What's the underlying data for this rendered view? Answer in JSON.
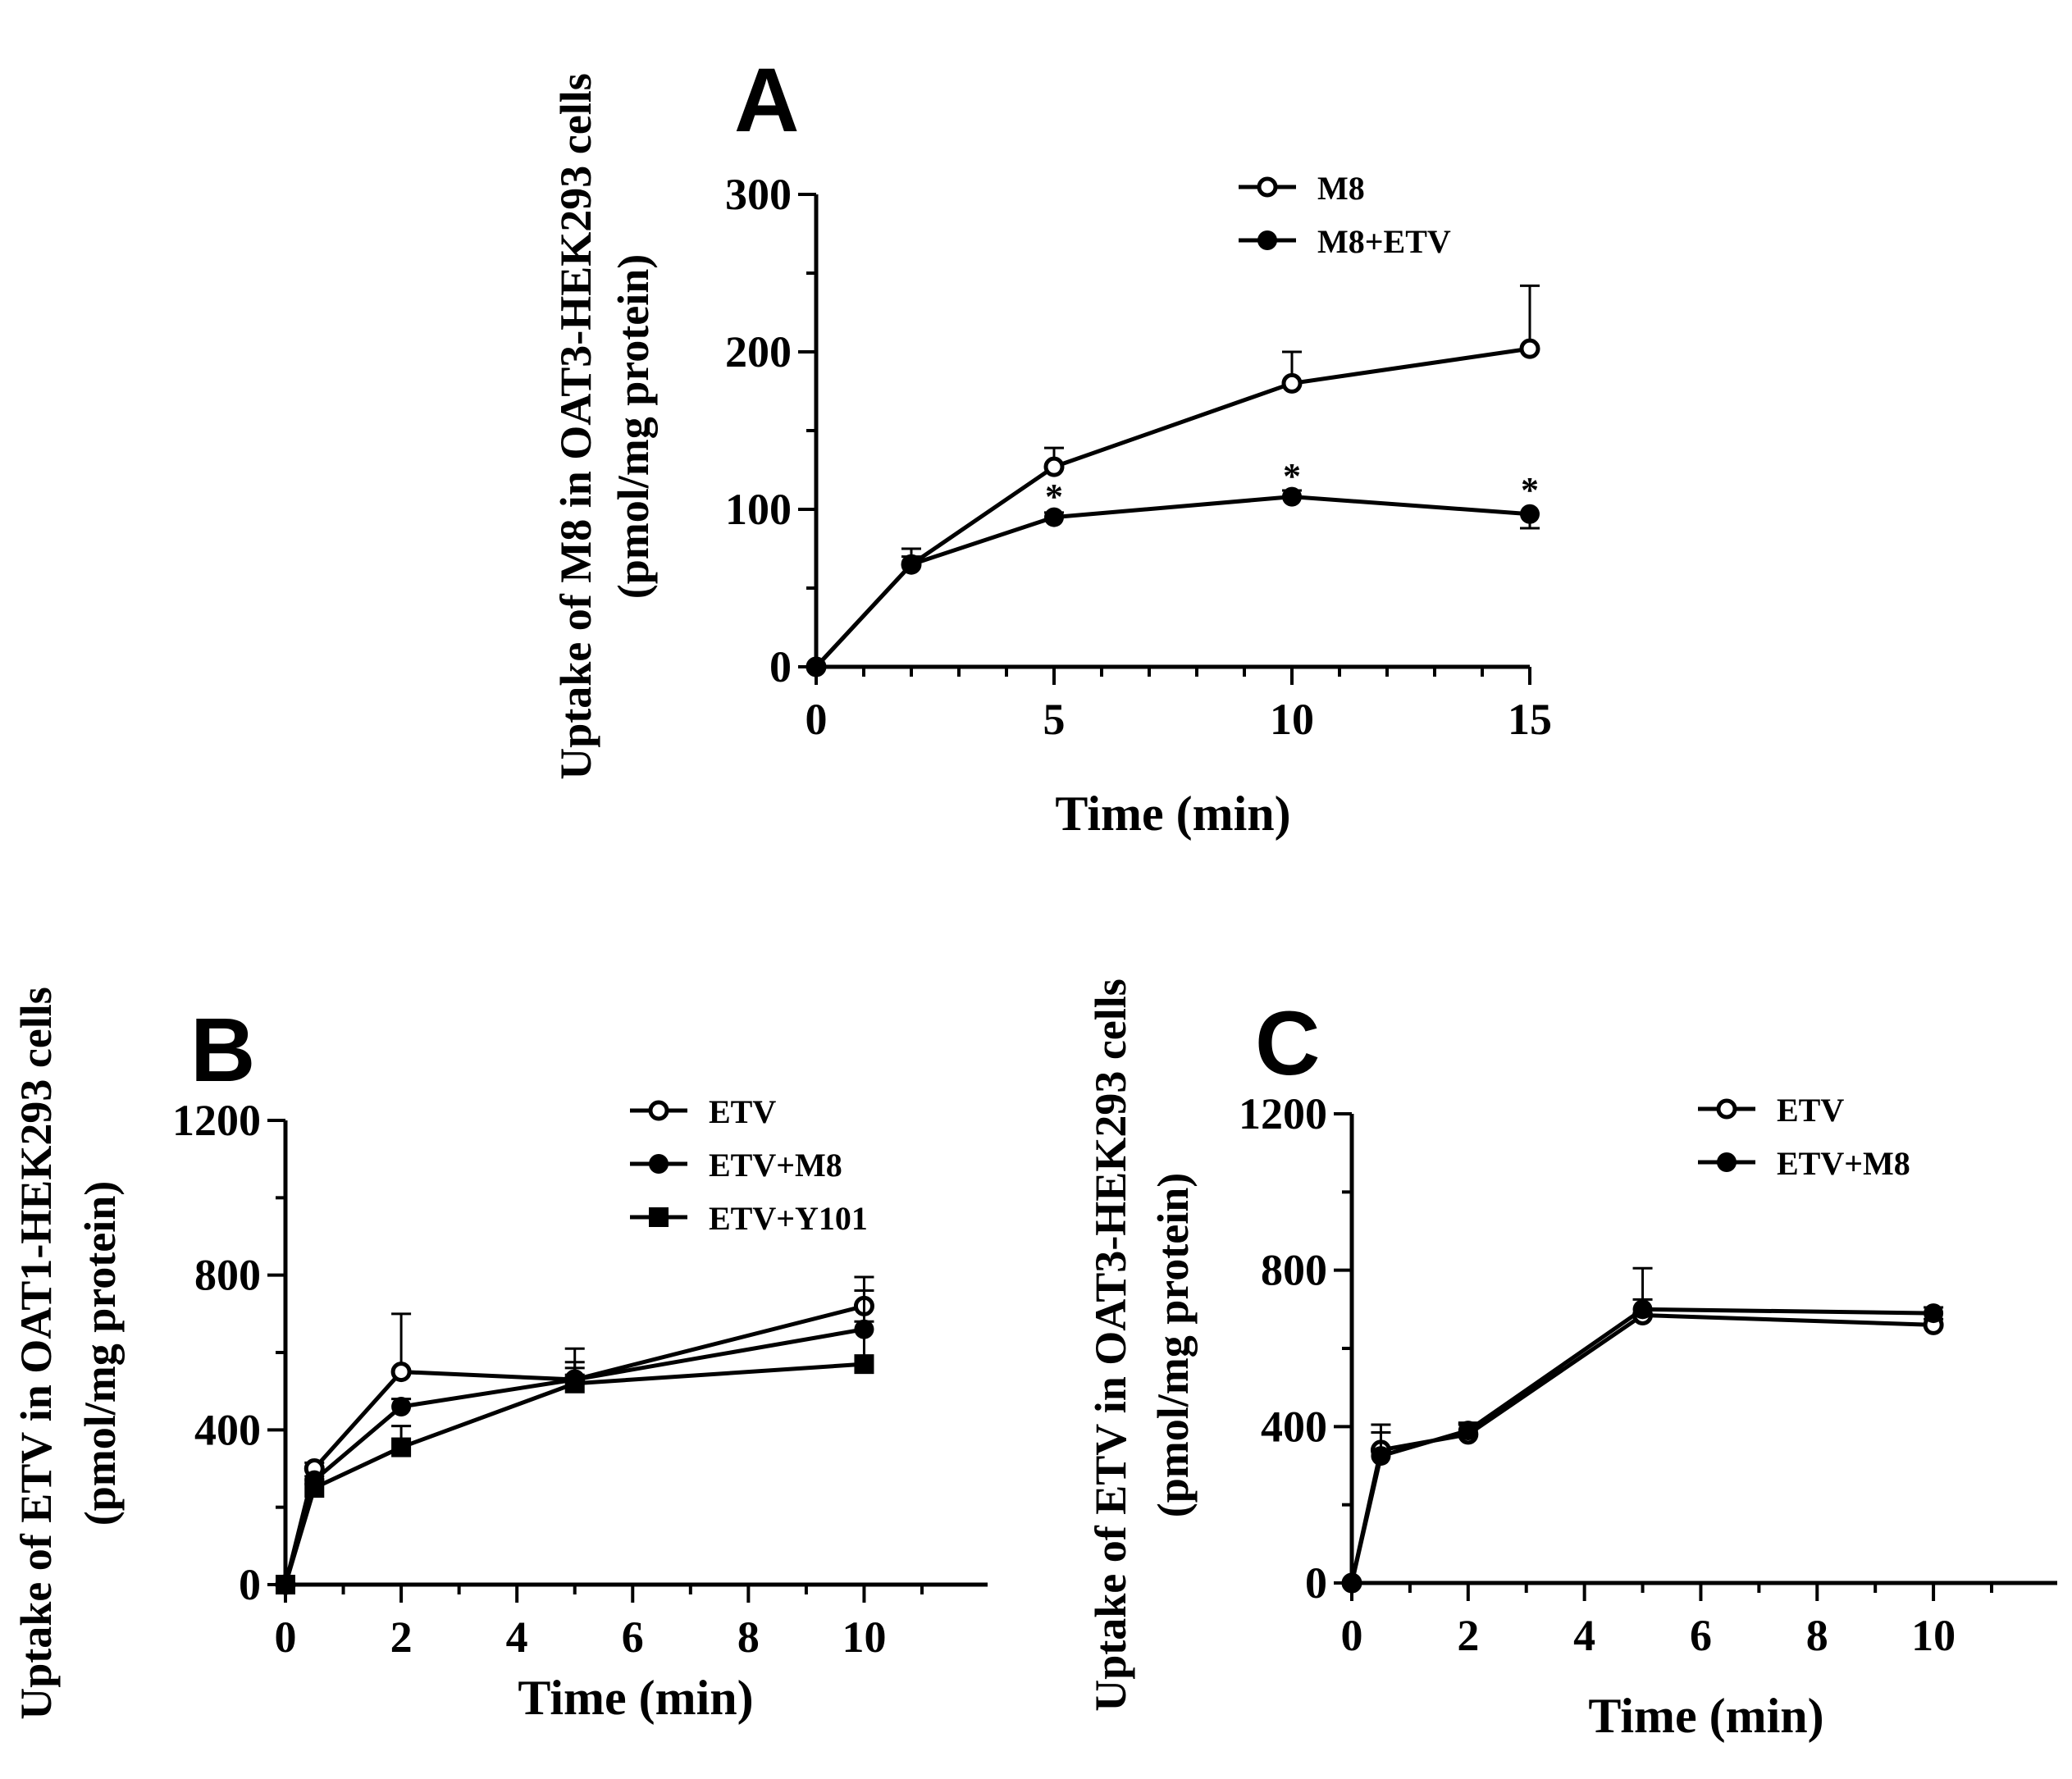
{
  "chart_data": [
    {
      "type": "line",
      "panel_label": "A",
      "xlabel": "Time (min)",
      "ylabel": "Uptake of M8 in OAT3-HEK293 cells",
      "ylabel2": "(pmol/mg protein)",
      "xlim": [
        0,
        15
      ],
      "ylim": [
        0,
        300
      ],
      "xticks": [
        0,
        5,
        10,
        15
      ],
      "yticks": [
        0,
        100,
        200,
        300
      ],
      "grid": false,
      "legend_position": "top-right",
      "series": [
        {
          "name": "M8",
          "marker": "open-circle",
          "x": [
            0,
            2,
            5,
            10,
            15
          ],
          "y": [
            0,
            65,
            127,
            180,
            202
          ],
          "err": [
            0,
            10,
            12,
            20,
            40
          ]
        },
        {
          "name": "M8+ETV",
          "marker": "filled-circle",
          "x": [
            0,
            2,
            5,
            10,
            15
          ],
          "y": [
            0,
            65,
            95,
            108,
            97
          ],
          "err": [
            0,
            5,
            3,
            4,
            9
          ]
        }
      ],
      "annotations": [
        {
          "text": "*",
          "x": 5,
          "y": 110
        },
        {
          "text": "*",
          "x": 10,
          "y": 123
        },
        {
          "text": "*",
          "x": 15,
          "y": 114
        }
      ]
    },
    {
      "type": "line",
      "panel_label": "B",
      "xlabel": "Time (min)",
      "ylabel": "Uptake of ETV in OAT1-HEK293 cells",
      "ylabel2": "(pmol/mg protein)",
      "xlim": [
        0,
        11
      ],
      "ylim": [
        0,
        1200
      ],
      "xticks": [
        0,
        2,
        4,
        6,
        8,
        10
      ],
      "yticks": [
        0,
        400,
        800,
        1200
      ],
      "grid": false,
      "legend_position": "top-right",
      "series": [
        {
          "name": "ETV",
          "marker": "open-circle",
          "x": [
            0,
            0.5,
            2,
            5,
            10
          ],
          "y": [
            0,
            300,
            550,
            530,
            720
          ],
          "err": [
            0,
            15,
            150,
            80,
            75
          ]
        },
        {
          "name": "ETV+M8",
          "marker": "filled-circle",
          "x": [
            0,
            0.5,
            2,
            5,
            10
          ],
          "y": [
            0,
            270,
            460,
            530,
            660
          ],
          "err": [
            0,
            10,
            20,
            30,
            20
          ]
        },
        {
          "name": "ETV+Y101",
          "marker": "filled-square",
          "x": [
            0,
            0.5,
            2,
            5,
            10
          ],
          "y": [
            0,
            250,
            355,
            520,
            570
          ],
          "err": [
            0,
            10,
            55,
            55,
            190
          ]
        }
      ]
    },
    {
      "type": "line",
      "panel_label": "C",
      "xlabel": "Time (min)",
      "ylabel": "Uptake of ETV in OAT3-HEK293 cells",
      "ylabel2": "(pmol/mg protein)",
      "xlim": [
        0,
        11
      ],
      "ylim": [
        0,
        1200
      ],
      "xticks": [
        0,
        2,
        4,
        6,
        8,
        10
      ],
      "yticks": [
        0,
        400,
        800,
        1200
      ],
      "grid": false,
      "legend_position": "top-right",
      "series": [
        {
          "name": "ETV",
          "marker": "open-circle",
          "x": [
            0,
            0.5,
            2,
            5,
            10
          ],
          "y": [
            0,
            340,
            380,
            685,
            660
          ],
          "err": [
            0,
            65,
            25,
            40,
            15
          ]
        },
        {
          "name": "ETV+M8",
          "marker": "filled-circle",
          "x": [
            0,
            0.5,
            2,
            5,
            10
          ],
          "y": [
            0,
            325,
            390,
            700,
            690
          ],
          "err": [
            0,
            60,
            20,
            105,
            15
          ]
        }
      ]
    }
  ]
}
